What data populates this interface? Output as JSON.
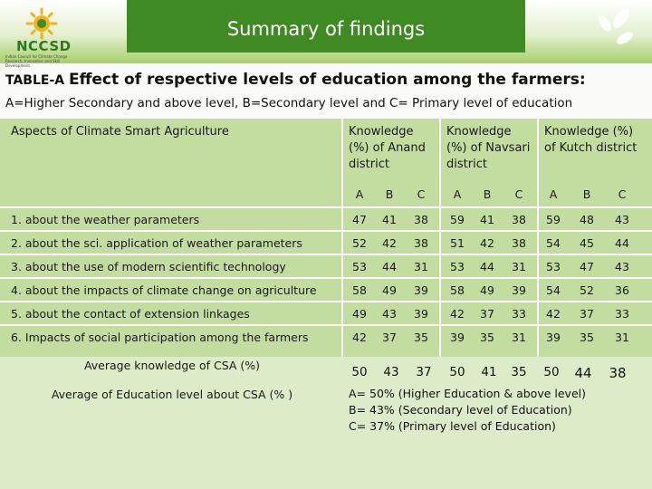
{
  "slide": {
    "title": "Summary of findings",
    "logo_text": "NCCSD",
    "logo_subtext": "Indian Council for Climate Change Research, Innovation and Skill Development"
  },
  "table_label": {
    "prefix": "TABLE-A",
    "title": "Effect of respective levels of education among the farmers:"
  },
  "subheading": "A=Higher Secondary and above level, B=Secondary level and C= Primary level of education",
  "table": {
    "aspects_header": "Aspects of Climate Smart Agriculture",
    "groups": [
      "Knowledge (%) of Anand district",
      "Knowledge (%) of Navsari district",
      "Knowledge (%) of Kutch district"
    ],
    "subcolumns": [
      "A",
      "B",
      "C",
      "A",
      "B",
      "C",
      "A",
      "B",
      "C"
    ],
    "rows": [
      {
        "label": "1. about the weather parameters",
        "values": [
          47,
          41,
          38,
          59,
          41,
          38,
          59,
          48,
          43
        ]
      },
      {
        "label": "2. about the sci. application of weather parameters",
        "values": [
          52,
          42,
          38,
          51,
          42,
          38,
          54,
          45,
          44
        ]
      },
      {
        "label": "3. about the use of modern scientific technology",
        "values": [
          53,
          44,
          31,
          53,
          44,
          31,
          53,
          47,
          43
        ]
      },
      {
        "label": "4. about the impacts of climate change on agriculture",
        "values": [
          58,
          49,
          39,
          58,
          49,
          39,
          54,
          52,
          36
        ]
      },
      {
        "label": "5. about the contact of extension  linkages",
        "values": [
          49,
          43,
          39,
          42,
          37,
          33,
          42,
          37,
          33
        ]
      },
      {
        "label": "6. Impacts of social participation among the farmers",
        "values": [
          42,
          37,
          35,
          39,
          35,
          31,
          39,
          35,
          31
        ]
      }
    ],
    "average_row": {
      "label": "Average knowledge of CSA (%)",
      "values": [
        50,
        43,
        37,
        50,
        41,
        35,
        50,
        44,
        38
      ]
    },
    "education_average": {
      "label": "Average of Education level about CSA (% )",
      "lines": [
        "A= 50%  (Higher Education & above level)",
        "B= 43% (Secondary level of Education)",
        "C= 37% (Primary level of Education)"
      ]
    }
  },
  "colors": {
    "header_band": "#3f8a22",
    "table_background": "#c3dc9f",
    "footer_background": "#dcebc8"
  }
}
